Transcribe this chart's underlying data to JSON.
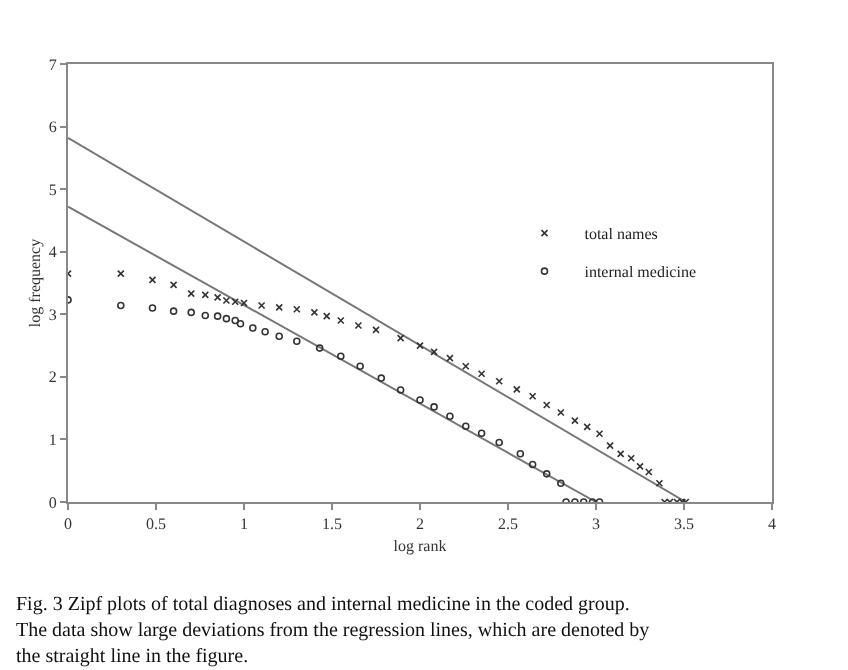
{
  "chart_data": {
    "type": "scatter",
    "xlabel": "log rank",
    "ylabel": "log frequency",
    "xlim": [
      0,
      4
    ],
    "ylim": [
      0,
      7
    ],
    "xticks": [
      0,
      0.5,
      1,
      1.5,
      2,
      2.5,
      3,
      3.5,
      4
    ],
    "yticks": [
      0,
      1,
      2,
      3,
      4,
      5,
      6,
      7
    ],
    "legend": "right",
    "series": [
      {
        "name": "total names",
        "color": "#333333",
        "marker": "cross",
        "x": [
          0,
          0.3,
          0.48,
          0.6,
          0.7,
          0.78,
          0.85,
          0.9,
          0.95,
          1.0,
          1.1,
          1.2,
          1.3,
          1.4,
          1.47,
          1.55,
          1.65,
          1.75,
          1.89,
          2.0,
          2.08,
          2.17,
          2.26,
          2.35,
          2.45,
          2.55,
          2.64,
          2.72,
          2.8,
          2.88,
          2.95,
          3.02,
          3.08,
          3.14,
          3.2,
          3.25,
          3.3,
          3.36,
          3.39,
          3.42,
          3.46,
          3.49,
          3.51
        ],
        "values": [
          3.65,
          3.65,
          3.55,
          3.47,
          3.33,
          3.31,
          3.27,
          3.22,
          3.2,
          3.18,
          3.14,
          3.11,
          3.08,
          3.03,
          2.97,
          2.9,
          2.82,
          2.75,
          2.62,
          2.5,
          2.4,
          2.3,
          2.17,
          2.05,
          1.93,
          1.8,
          1.69,
          1.55,
          1.43,
          1.3,
          1.2,
          1.09,
          0.9,
          0.77,
          0.7,
          0.57,
          0.48,
          0.3,
          0,
          0,
          0,
          0,
          0
        ]
      },
      {
        "name": "internal medicine",
        "color": "#333333",
        "marker": "circle",
        "x": [
          0,
          0.3,
          0.48,
          0.6,
          0.7,
          0.78,
          0.85,
          0.9,
          0.95,
          0.98,
          1.05,
          1.12,
          1.2,
          1.3,
          1.43,
          1.55,
          1.66,
          1.78,
          1.89,
          2.0,
          2.08,
          2.17,
          2.26,
          2.35,
          2.45,
          2.57,
          2.64,
          2.72,
          2.8,
          2.83,
          2.88,
          2.93,
          2.98,
          3.02
        ],
        "values": [
          3.23,
          3.14,
          3.1,
          3.05,
          3.03,
          2.98,
          2.97,
          2.93,
          2.9,
          2.85,
          2.78,
          2.72,
          2.65,
          2.57,
          2.46,
          2.33,
          2.17,
          1.98,
          1.79,
          1.63,
          1.52,
          1.37,
          1.21,
          1.1,
          0.95,
          0.77,
          0.6,
          0.45,
          0.3,
          0,
          0,
          0,
          0,
          0
        ]
      },
      {
        "type": "line",
        "color": "#777777",
        "marker": "none",
        "x": [
          0,
          3.51
        ],
        "values": [
          5.82,
          0
        ]
      },
      {
        "type": "line",
        "color": "#777777",
        "marker": "none",
        "x": [
          0,
          3.0
        ],
        "values": [
          4.72,
          0
        ]
      }
    ],
    "annotations": [
      "Fig. 3 Zipf plots of total diagnoses and internal medicine in the coded group. The data show large deviations from the regression lines, which are denoted by the straight line in the figure."
    ]
  }
}
